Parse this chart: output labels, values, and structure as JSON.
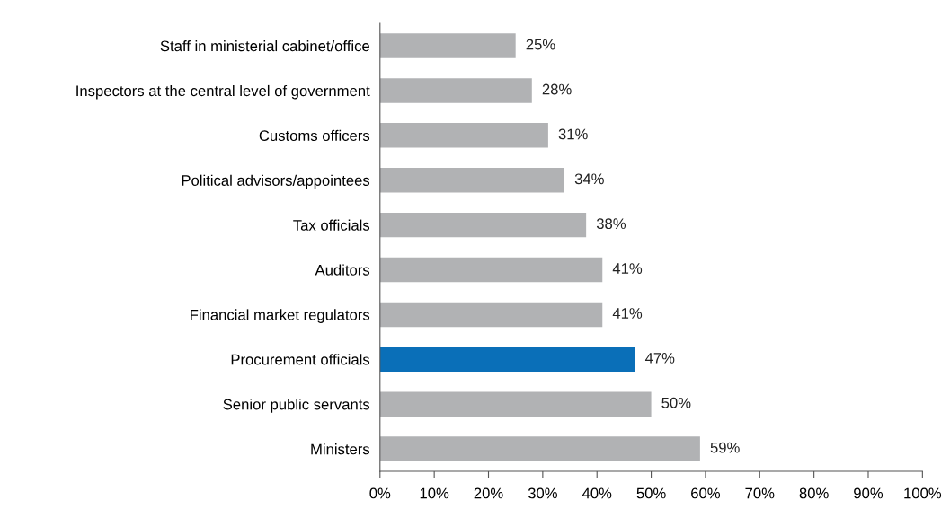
{
  "chart_data": {
    "type": "bar",
    "orientation": "horizontal",
    "categories": [
      "Staff in ministerial cabinet/office",
      "Inspectors at the central level of government",
      "Customs officers",
      "Political advisors/appointees",
      "Tax officials",
      "Auditors",
      "Financial market regulators",
      "Procurement officials",
      "Senior public servants",
      "Ministers"
    ],
    "values": [
      25,
      28,
      31,
      34,
      38,
      41,
      41,
      47,
      50,
      59
    ],
    "value_labels": [
      "25%",
      "28%",
      "31%",
      "34%",
      "38%",
      "41%",
      "41%",
      "47%",
      "50%",
      "59%"
    ],
    "colors": [
      "#b1b2b4",
      "#b1b2b4",
      "#b1b2b4",
      "#b1b2b4",
      "#b1b2b4",
      "#b1b2b4",
      "#b1b2b4",
      "#0a6fb8",
      "#b1b2b4",
      "#b1b2b4"
    ],
    "xlim": [
      0,
      100
    ],
    "xticks": [
      {
        "value": 0,
        "label": "0%"
      },
      {
        "value": 10,
        "label": "10%"
      },
      {
        "value": 20,
        "label": "20%"
      },
      {
        "value": 30,
        "label": "30%"
      },
      {
        "value": 40,
        "label": "40%"
      },
      {
        "value": 50,
        "label": "50%"
      },
      {
        "value": 60,
        "label": "60%"
      },
      {
        "value": 70,
        "label": "70%"
      },
      {
        "value": 80,
        "label": "80%"
      },
      {
        "value": 90,
        "label": "90%"
      },
      {
        "value": 100,
        "label": "100%"
      }
    ],
    "grid": false,
    "legend": false
  }
}
